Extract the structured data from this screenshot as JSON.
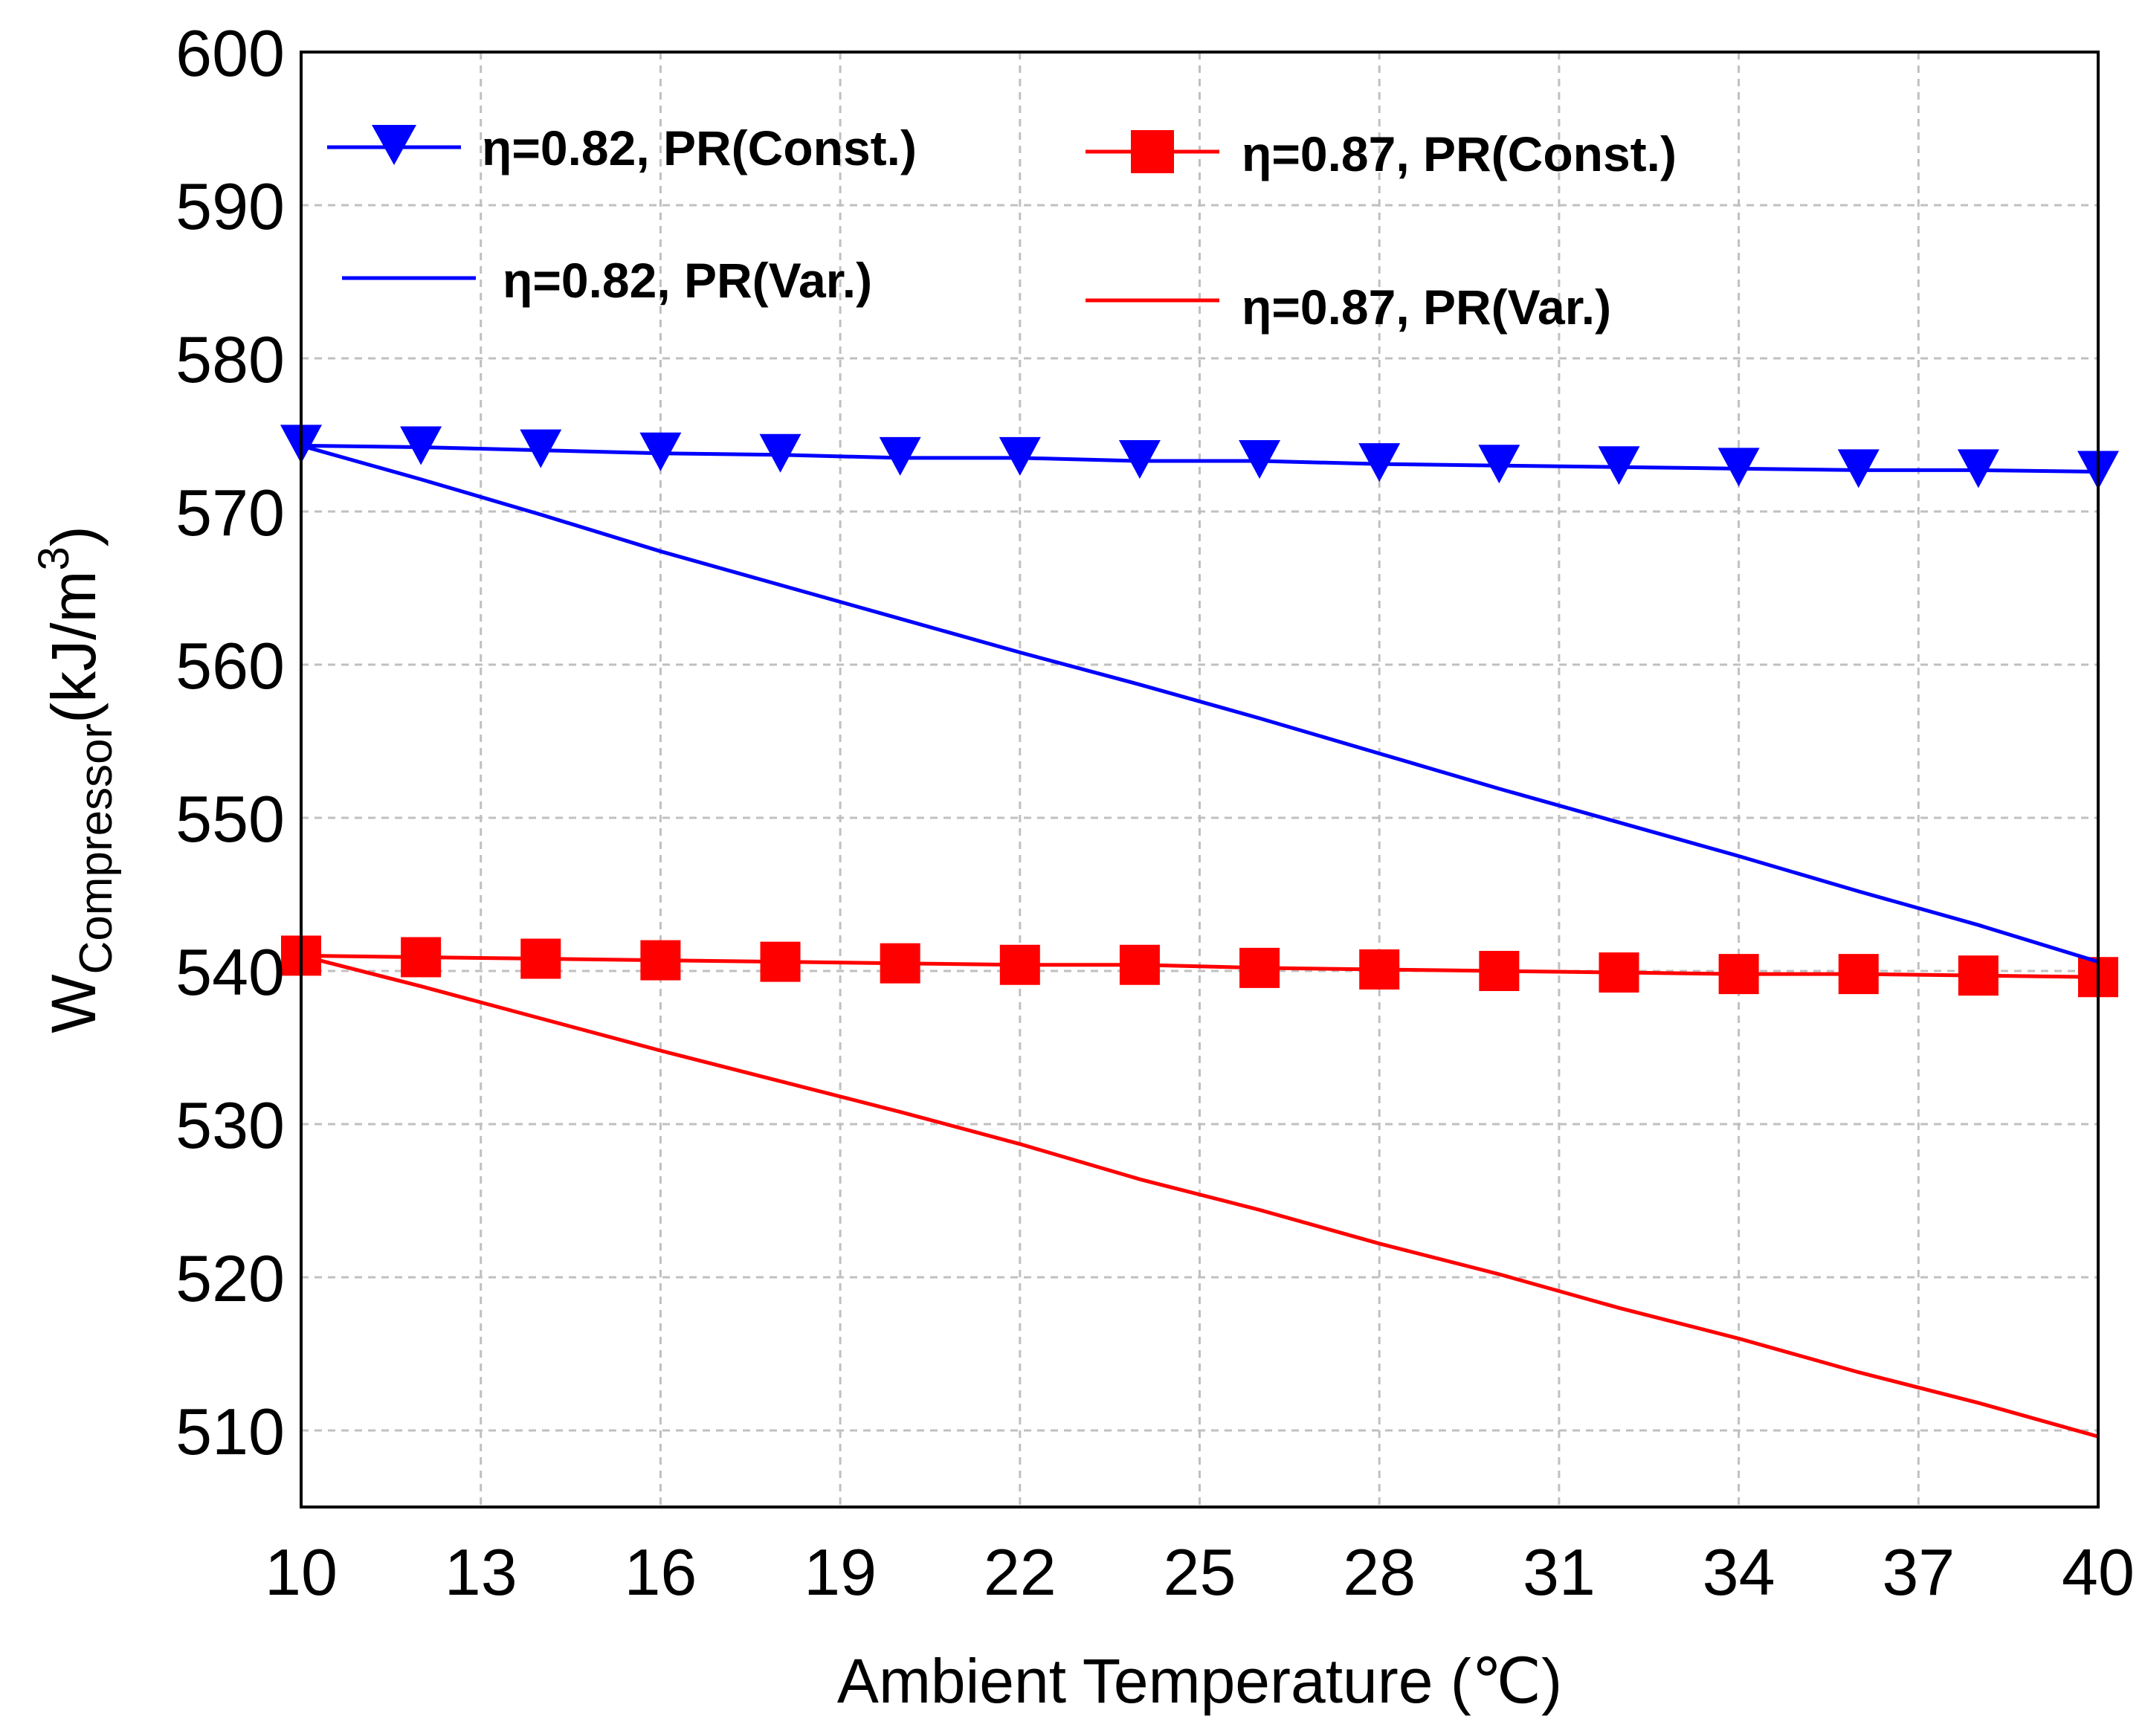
{
  "chart_data": {
    "type": "line",
    "title": "",
    "xlabel": "Ambient Temperature (℃)",
    "ylabel_main": "W",
    "ylabel_sub": "Compressor",
    "ylabel_unit": "(kJ/m",
    "ylabel_sup": "3",
    "ylabel_close": ")",
    "xlim": [
      10,
      40
    ],
    "ylim": [
      505,
      600
    ],
    "xticks": [
      10,
      13,
      16,
      19,
      22,
      25,
      28,
      31,
      34,
      37,
      40
    ],
    "yticks": [
      510,
      520,
      530,
      540,
      550,
      560,
      570,
      580,
      590,
      600
    ],
    "grid": true,
    "legend_position": "top",
    "series": [
      {
        "name": "η=0.82, PR(Const.)",
        "color": "#0000ff",
        "marker": "triangle-down",
        "x": [
          10,
          12,
          14,
          16,
          18,
          20,
          22,
          24,
          26,
          28,
          30,
          32,
          34,
          36,
          38,
          40
        ],
        "y": [
          574.3,
          574.2,
          574.0,
          573.8,
          573.7,
          573.5,
          573.5,
          573.3,
          573.3,
          573.1,
          573.0,
          572.9,
          572.8,
          572.7,
          572.7,
          572.6
        ]
      },
      {
        "name": "η=0.87, PR(Const.)",
        "color": "#ff0000",
        "marker": "square",
        "x": [
          10,
          12,
          14,
          16,
          18,
          20,
          22,
          24,
          26,
          28,
          30,
          32,
          34,
          36,
          38,
          40
        ],
        "y": [
          541.0,
          540.9,
          540.8,
          540.7,
          540.6,
          540.5,
          540.4,
          540.4,
          540.2,
          540.1,
          540.0,
          539.9,
          539.8,
          539.8,
          539.7,
          539.6
        ]
      },
      {
        "name": "η=0.82, PR(Var.)",
        "color": "#0000ff",
        "marker": "none",
        "x": [
          10,
          12,
          14,
          16,
          18,
          20,
          22,
          24,
          26,
          28,
          30,
          32,
          34,
          36,
          38,
          40
        ],
        "y": [
          574.3,
          572.1,
          569.8,
          567.4,
          565.2,
          563.0,
          560.8,
          558.7,
          556.5,
          554.2,
          551.9,
          549.7,
          547.5,
          545.2,
          543.0,
          540.6
        ]
      },
      {
        "name": "η=0.87, PR(Var.)",
        "color": "#ff0000",
        "marker": "none",
        "x": [
          10,
          12,
          14,
          16,
          18,
          20,
          22,
          24,
          26,
          28,
          30,
          32,
          34,
          36,
          38,
          40
        ],
        "y": [
          541.0,
          539.0,
          536.9,
          534.8,
          532.8,
          530.8,
          528.7,
          526.4,
          524.4,
          522.2,
          520.2,
          518.0,
          516.0,
          513.8,
          511.8,
          509.6
        ]
      }
    ]
  }
}
